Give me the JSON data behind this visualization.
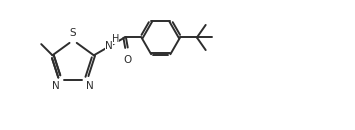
{
  "line_color": "#2d2d2d",
  "bg_color": "#ffffff",
  "line_width": 1.4,
  "font_size": 7.5,
  "figsize": [
    3.55,
    1.3
  ],
  "dpi": 100,
  "xlim": [
    0,
    3.55
  ],
  "ylim": [
    0,
    1.3
  ]
}
